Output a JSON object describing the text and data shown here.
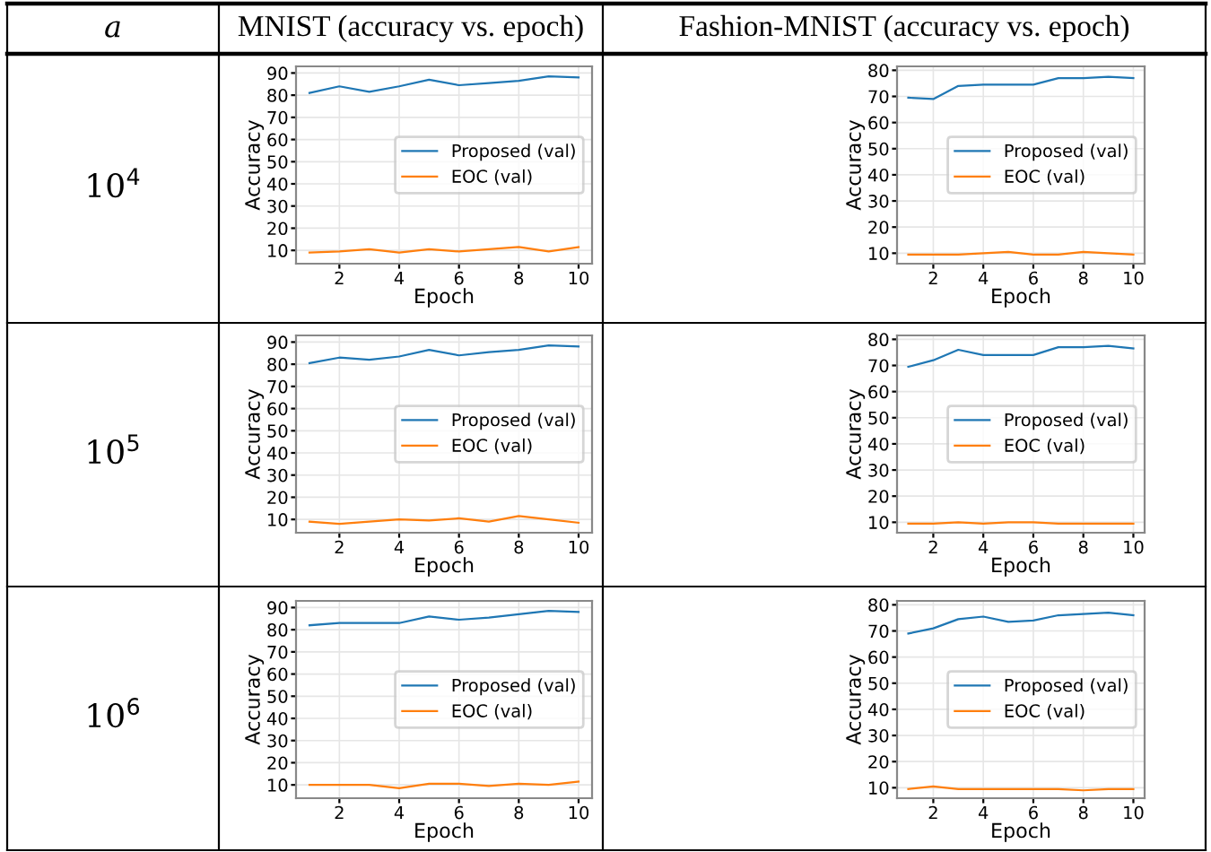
{
  "chart_data": [
    {
      "type": "line",
      "title": "MNIST (accuracy vs. epoch)",
      "annotations": [
        "a",
        "10$^{4}$"
      ],
      "xlabel": "Epoch",
      "ylabel": "Accuracy",
      "x": [
        1,
        2,
        3,
        4,
        5,
        6,
        7,
        8,
        9,
        10
      ],
      "xlim": [
        0.55,
        10.45
      ],
      "xticks": [
        2,
        4,
        6,
        8,
        10
      ],
      "ylim": [
        4,
        93
      ],
      "yticks": [
        10,
        20,
        30,
        40,
        50,
        60,
        70,
        80,
        90
      ],
      "grid": true,
      "legend": "center right",
      "series": [
        {
          "name": "Proposed (val)",
          "color": "#1f77b4",
          "values": [
            81,
            84,
            81.5,
            84,
            87,
            84.5,
            85.5,
            86.5,
            88.5,
            88
          ]
        },
        {
          "name": "EOC (val)",
          "color": "#ff7f0e",
          "values": [
            9,
            9.5,
            10.5,
            9,
            10.5,
            9.5,
            10.5,
            11.5,
            9.5,
            11.5
          ]
        }
      ]
    },
    {
      "type": "line",
      "title": "Fashion-MNIST (accuracy vs. epoch)",
      "xlabel": "Epoch",
      "ylabel": "Accuracy",
      "x": [
        1,
        2,
        3,
        4,
        5,
        6,
        7,
        8,
        9,
        10
      ],
      "xlim": [
        0.55,
        10.45
      ],
      "xticks": [
        2,
        4,
        6,
        8,
        10
      ],
      "ylim": [
        6,
        81.5
      ],
      "yticks": [
        10,
        20,
        30,
        40,
        50,
        60,
        70,
        80
      ],
      "grid": true,
      "legend": "center right",
      "series": [
        {
          "name": "Proposed (val)",
          "color": "#1f77b4",
          "values": [
            69.5,
            69,
            74,
            74.5,
            74.5,
            74.5,
            77,
            77,
            77.5,
            77
          ]
        },
        {
          "name": "EOC (val)",
          "color": "#ff7f0e",
          "values": [
            9.5,
            9.5,
            9.5,
            10,
            10.5,
            9.5,
            9.5,
            10.5,
            10,
            9.5
          ]
        }
      ]
    },
    {
      "type": "line",
      "annotations": [
        "10$^{5}$"
      ],
      "xlabel": "Epoch",
      "ylabel": "Accuracy",
      "x": [
        1,
        2,
        3,
        4,
        5,
        6,
        7,
        8,
        9,
        10
      ],
      "xlim": [
        0.55,
        10.45
      ],
      "xticks": [
        2,
        4,
        6,
        8,
        10
      ],
      "ylim": [
        4,
        93
      ],
      "yticks": [
        10,
        20,
        30,
        40,
        50,
        60,
        70,
        80,
        90
      ],
      "grid": true,
      "legend": "center right",
      "series": [
        {
          "name": "Proposed (val)",
          "color": "#1f77b4",
          "values": [
            80.5,
            83,
            82,
            83.5,
            86.5,
            84,
            85.5,
            86.5,
            88.5,
            88
          ]
        },
        {
          "name": "EOC (val)",
          "color": "#ff7f0e",
          "values": [
            9,
            8,
            9,
            10,
            9.5,
            10.5,
            9,
            11.5,
            10,
            8.5
          ]
        }
      ]
    },
    {
      "type": "line",
      "xlabel": "Epoch",
      "ylabel": "Accuracy",
      "x": [
        1,
        2,
        3,
        4,
        5,
        6,
        7,
        8,
        9,
        10
      ],
      "xlim": [
        0.55,
        10.45
      ],
      "xticks": [
        2,
        4,
        6,
        8,
        10
      ],
      "ylim": [
        6,
        81.5
      ],
      "yticks": [
        10,
        20,
        30,
        40,
        50,
        60,
        70,
        80
      ],
      "grid": true,
      "legend": "center right",
      "series": [
        {
          "name": "Proposed (val)",
          "color": "#1f77b4",
          "values": [
            69.5,
            72,
            76,
            74,
            74,
            74,
            77,
            77,
            77.5,
            76.5
          ]
        },
        {
          "name": "EOC (val)",
          "color": "#ff7f0e",
          "values": [
            9.5,
            9.5,
            10,
            9.5,
            10,
            10,
            9.5,
            9.5,
            9.5,
            9.5
          ]
        }
      ]
    },
    {
      "type": "line",
      "annotations": [
        "10$^{6}$"
      ],
      "xlabel": "Epoch",
      "ylabel": "Accuracy",
      "x": [
        1,
        2,
        3,
        4,
        5,
        6,
        7,
        8,
        9,
        10
      ],
      "xlim": [
        0.55,
        10.45
      ],
      "xticks": [
        2,
        4,
        6,
        8,
        10
      ],
      "ylim": [
        4,
        93
      ],
      "yticks": [
        10,
        20,
        30,
        40,
        50,
        60,
        70,
        80,
        90
      ],
      "grid": true,
      "legend": "center right",
      "series": [
        {
          "name": "Proposed (val)",
          "color": "#1f77b4",
          "values": [
            82,
            83,
            83,
            83,
            86,
            84.5,
            85.5,
            87,
            88.5,
            88
          ]
        },
        {
          "name": "EOC (val)",
          "color": "#ff7f0e",
          "values": [
            10,
            10,
            10,
            8.5,
            10.5,
            10.5,
            9.5,
            10.5,
            10,
            11.5
          ]
        }
      ]
    },
    {
      "type": "line",
      "xlabel": "Epoch",
      "ylabel": "Accuracy",
      "x": [
        1,
        2,
        3,
        4,
        5,
        6,
        7,
        8,
        9,
        10
      ],
      "xlim": [
        0.55,
        10.45
      ],
      "xticks": [
        2,
        4,
        6,
        8,
        10
      ],
      "ylim": [
        6,
        81.5
      ],
      "yticks": [
        10,
        20,
        30,
        40,
        50,
        60,
        70,
        80
      ],
      "grid": true,
      "legend": "center right",
      "series": [
        {
          "name": "Proposed (val)",
          "color": "#1f77b4",
          "values": [
            69,
            71,
            74.5,
            75.5,
            73.5,
            74,
            76,
            76.5,
            77,
            76
          ]
        },
        {
          "name": "EOC (val)",
          "color": "#ff7f0e",
          "values": [
            9.5,
            10.5,
            9.5,
            9.5,
            9.5,
            9.5,
            9.5,
            9,
            9.5,
            9.5
          ]
        }
      ]
    }
  ]
}
